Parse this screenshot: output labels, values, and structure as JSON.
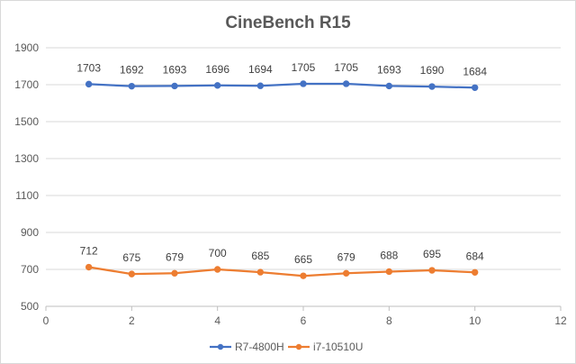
{
  "chart_data": {
    "type": "line",
    "title": "CineBench R15",
    "xlabel": "",
    "ylabel": "",
    "xlim": [
      0,
      12
    ],
    "ylim": [
      500,
      1900
    ],
    "x_ticks": [
      0,
      2,
      4,
      6,
      8,
      10,
      12
    ],
    "y_ticks": [
      500,
      700,
      900,
      1100,
      1300,
      1500,
      1700,
      1900
    ],
    "grid": "horizontal",
    "legend_position": "bottom",
    "x": [
      1,
      2,
      3,
      4,
      5,
      6,
      7,
      8,
      9,
      10
    ],
    "series": [
      {
        "name": "R7-4800H",
        "color": "#4472c4",
        "values": [
          1703,
          1692,
          1693,
          1696,
          1694,
          1705,
          1705,
          1693,
          1690,
          1684
        ]
      },
      {
        "name": "i7-10510U",
        "color": "#ed7d31",
        "values": [
          712,
          675,
          679,
          700,
          685,
          665,
          679,
          688,
          695,
          684
        ]
      }
    ]
  }
}
